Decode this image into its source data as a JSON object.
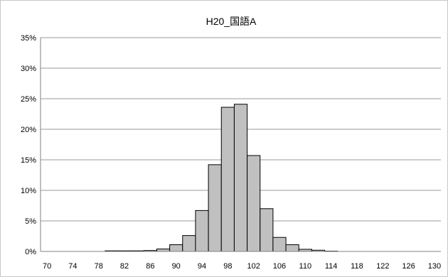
{
  "chart_data": {
    "type": "bar",
    "title": "H20_国語A",
    "xlabel": "",
    "ylabel": "",
    "y_unit": "%",
    "ylim": [
      0,
      35
    ],
    "y_ticks": [
      "0%",
      "5%",
      "10%",
      "15%",
      "20%",
      "25%",
      "30%",
      "35%"
    ],
    "x_tick_labels": [
      "70",
      "74",
      "78",
      "82",
      "86",
      "90",
      "94",
      "98",
      "102",
      "106",
      "110",
      "114",
      "118",
      "122",
      "126",
      "130"
    ],
    "grid": true,
    "legend": "none",
    "bar_color": "#c0c0c0",
    "categories": [
      70,
      72,
      74,
      76,
      78,
      80,
      82,
      84,
      86,
      88,
      90,
      92,
      94,
      96,
      98,
      100,
      102,
      104,
      106,
      108,
      110,
      112,
      114,
      116,
      118,
      120,
      122,
      124,
      126,
      128,
      130
    ],
    "values": [
      0,
      0,
      0,
      0,
      0,
      0.1,
      0.1,
      0.1,
      0.15,
      0.4,
      1.1,
      2.6,
      6.7,
      14.2,
      23.6,
      24.1,
      15.7,
      7.0,
      2.3,
      1.1,
      0.35,
      0.2,
      0.05,
      0,
      0,
      0,
      0,
      0,
      0,
      0,
      0
    ]
  }
}
